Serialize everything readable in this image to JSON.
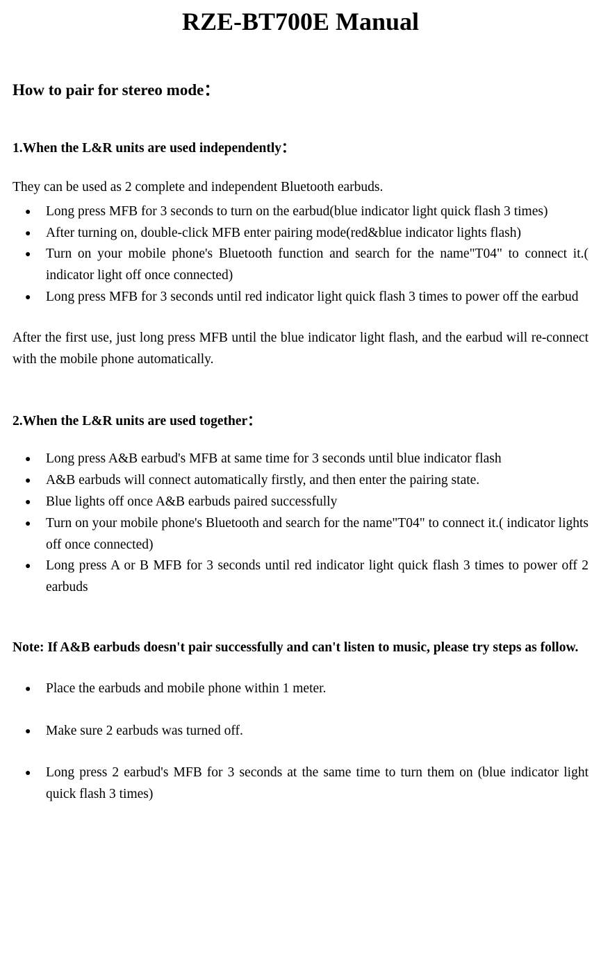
{
  "document": {
    "title": "RZE-BT700E    Manual",
    "heading_main": "How to pair for stereo mode：",
    "section1": {
      "heading": "1.When the L&R units are used independently：",
      "intro": "They can be used as 2 complete and independent Bluetooth earbuds.",
      "bullets": {
        "b1": "Long press MFB for 3 seconds to turn on the earbud(blue indicator light quick flash 3 times)",
        "b2": "After turning on, double-click MFB enter pairing mode(red&blue indicator lights flash)",
        "b3": "Turn on your mobile phone's Bluetooth function and search for the name\"T04\" to connect it.( indicator light off once connected)",
        "b4": "Long press MFB for 3 seconds until red indicator light quick flash 3 times to power off the earbud"
      },
      "after": "After the first use, just long press MFB until the blue indicator light flash, and the earbud will re-connect with the mobile phone automatically."
    },
    "section2": {
      "heading": "2.When the L&R units are used together：",
      "bullets": {
        "b1": "Long press A&B earbud's MFB at same time for 3 seconds until blue indicator flash",
        "b2": "A&B earbuds will connect automatically firstly, and then enter the pairing state.",
        "b3": "Blue lights off once A&B earbuds paired successfully",
        "b4": "Turn on your mobile phone's Bluetooth and search for the name\"T04\" to connect it.( indicator lights off once connected)",
        "b5": "Long press A or B MFB for 3 seconds until red indicator light quick flash 3 times to power off 2 earbuds"
      }
    },
    "note": {
      "heading": "Note: If A&B earbuds doesn't pair successfully and can't listen to music, please try steps as follow.",
      "bullets": {
        "b1": "Place the earbuds and mobile phone within 1 meter.",
        "b2": "Make sure 2 earbuds was turned off.",
        "b3": "Long press 2 earbud's MFB for 3 seconds at the same time to turn them on (blue indicator light quick flash 3 times)"
      }
    }
  },
  "styling": {
    "background_color": "#ffffff",
    "text_color": "#000000",
    "font_family": "Times New Roman",
    "title_fontsize": 36,
    "heading_fontsize": 23,
    "body_fontsize": 19.5,
    "line_height": 1.58,
    "bullet_glyph": "●"
  }
}
